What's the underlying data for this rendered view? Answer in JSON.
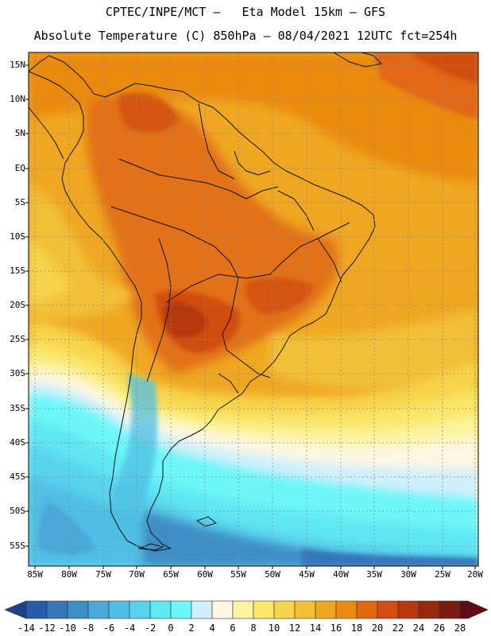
{
  "header": {
    "title_line1": "CPTEC/INPE/MCT –   Eta Model 15km – GFS",
    "title_line2": "Absolute Temperature (C) 850hPa – 08/04/2021 12UTC fct=254h"
  },
  "map": {
    "latitude_labels": [
      "15N",
      "10N",
      "5N",
      "EQ",
      "5S",
      "10S",
      "15S",
      "20S",
      "25S",
      "30S",
      "35S",
      "40S",
      "45S",
      "50S",
      "55S"
    ],
    "longitude_labels": [
      "85W",
      "80W",
      "75W",
      "70W",
      "65W",
      "60W",
      "55W",
      "50W",
      "45W",
      "40W",
      "35W",
      "30W",
      "25W",
      "20W"
    ],
    "colors": {
      "land_outline": "#111111",
      "grid": "#8a8a8a"
    }
  },
  "colorbar": {
    "labels": [
      "-14",
      "-12",
      "-10",
      "-8",
      "-6",
      "-4",
      "-2",
      "0",
      "2",
      "4",
      "6",
      "8",
      "10",
      "12",
      "14",
      "16",
      "18",
      "20",
      "22",
      "24",
      "26",
      "28"
    ],
    "colors": [
      "#1f3f8f",
      "#2a5ba8",
      "#3577b8",
      "#3d8ec6",
      "#49a8d6",
      "#4fbfe3",
      "#59d3ec",
      "#5fe7f3",
      "#6cf7f7",
      "#cfeffc",
      "#fdf7e2",
      "#fbf3a0",
      "#f9e66a",
      "#f7d44c",
      "#f2c038",
      "#efa722",
      "#ea8a10",
      "#e06812",
      "#d24d10",
      "#b63810",
      "#962a10",
      "#7a1c10",
      "#610c12"
    ]
  }
}
